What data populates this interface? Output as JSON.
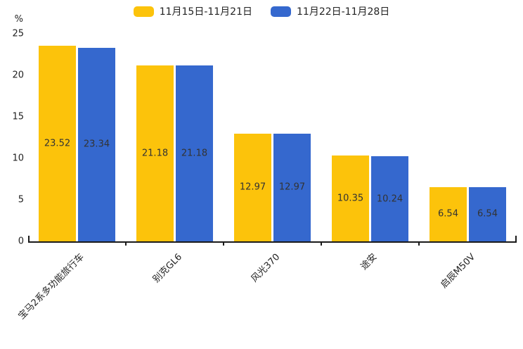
{
  "chart_data": {
    "type": "bar",
    "title": "",
    "ylabel": "%",
    "xlabel": "",
    "ylim": [
      0,
      25
    ],
    "yticks": [
      0,
      5,
      10,
      15,
      20,
      25
    ],
    "grid": false,
    "legend_position": "top-center",
    "categories": [
      "宝马2系多功能旅行车",
      "别克GL6",
      "风光370",
      "途安",
      "启辰M50V"
    ],
    "series": [
      {
        "name": "11月15日-11月21日",
        "color": "#FCC30B",
        "values": [
          23.52,
          21.18,
          12.97,
          10.35,
          6.54
        ]
      },
      {
        "name": "11月22日-11月28日",
        "color": "#3568CE",
        "values": [
          23.34,
          21.18,
          12.97,
          10.24,
          6.54
        ]
      }
    ],
    "value_label_color": "#333333",
    "axis_color": "#1a1a1a"
  }
}
